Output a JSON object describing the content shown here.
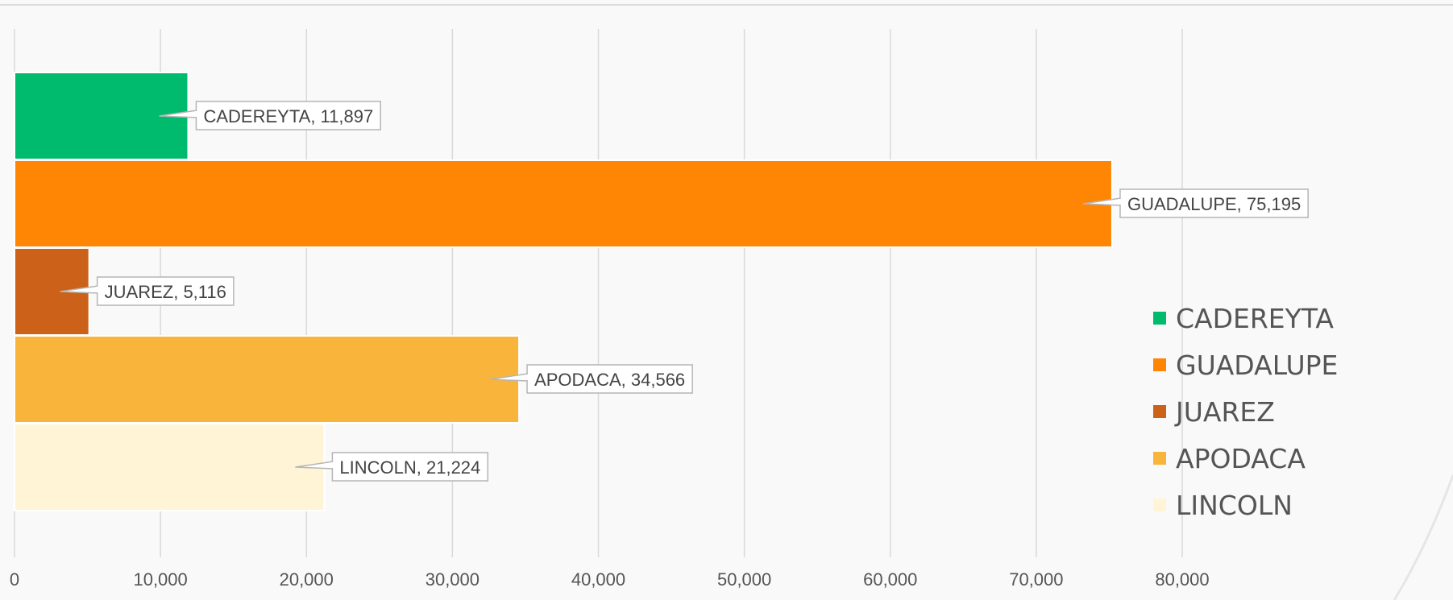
{
  "chart_data": {
    "type": "bar",
    "orientation": "horizontal",
    "categories": [
      "CADEREYTA",
      "GUADALUPE",
      "JUAREZ",
      "APODACA",
      "LINCOLN"
    ],
    "values": [
      11897,
      75195,
      5116,
      34566,
      21224
    ],
    "data_labels": [
      "CADEREYTA, 11,897",
      "GUADALUPE, 75,195",
      "JUAREZ, 5,116",
      "APODACA, 34,566",
      "LINCOLN, 21,224"
    ],
    "colors": [
      "#00bb6e",
      "#ff8605",
      "#cc6219",
      "#f9b53b",
      "#fff4d6"
    ],
    "x_ticks": [
      "0",
      "10,000",
      "20,000",
      "30,000",
      "40,000",
      "50,000",
      "60,000",
      "70,000",
      "80,000"
    ],
    "xlim": [
      0,
      80000
    ],
    "grid": true,
    "legend_position": "right",
    "legend": [
      "CADEREYTA",
      "GUADALUPE",
      "JUAREZ",
      "APODACA",
      "LINCOLN"
    ],
    "title": "",
    "xlabel": "",
    "ylabel": ""
  }
}
